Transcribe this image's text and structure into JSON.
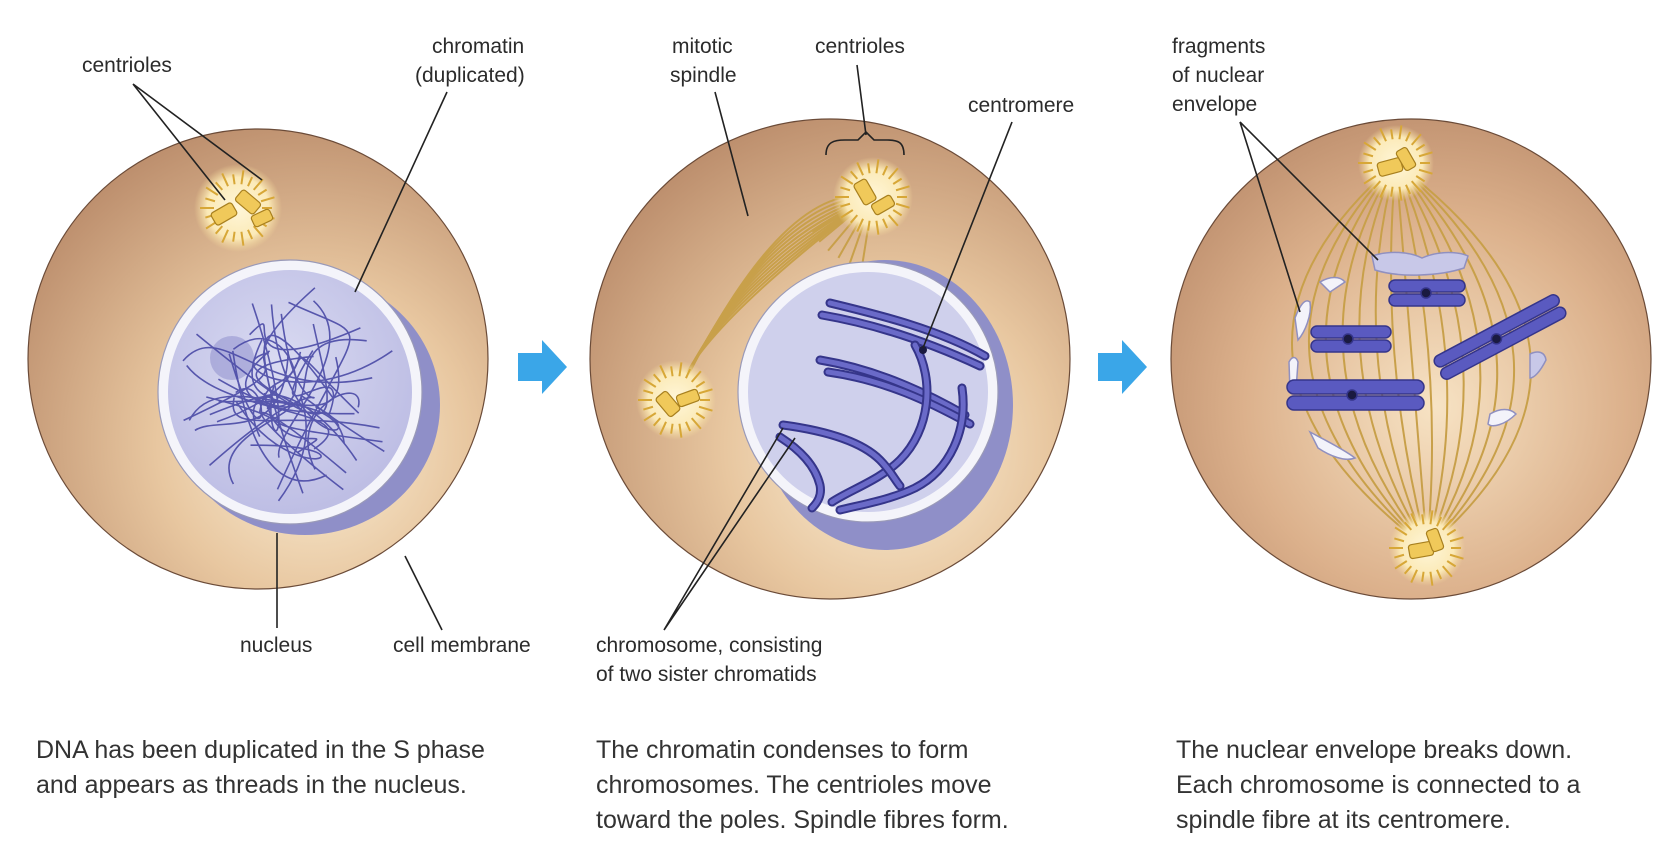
{
  "colors": {
    "cytoplasm": "#c79a79",
    "cytoplasm_light": "#f6e6c8",
    "nucleus": "#cfd0ec",
    "nuclear_envelope": "#f2f3f8",
    "chromatin": "#4a4aa6",
    "chromatid_fill": "#5a5ac0",
    "centriole": "#f0c95a",
    "centrosome_glow": "#fbeec4",
    "spindle_fibre": "#c8a04a",
    "arrow": "#3aa6e8",
    "label_line": "#222222"
  },
  "panels": [
    {
      "labels": {
        "centrioles": "centrioles",
        "chromatin_line1": "chromatin",
        "chromatin_line2": "(duplicated)",
        "nucleus": "nucleus",
        "cell_membrane": "cell membrane"
      },
      "caption": [
        "DNA has been duplicated in the S phase",
        "and appears as threads in the nucleus."
      ]
    },
    {
      "labels": {
        "mitotic_line1": "mitotic",
        "mitotic_line2": "spindle",
        "centrioles": "centrioles",
        "centromere": "centromere",
        "chromosome_line1": "chromosome, consisting",
        "chromosome_line2": "of two sister chromatids"
      },
      "caption": [
        "The chromatin condenses to form",
        "chromosomes. The centrioles move",
        "toward the poles. Spindle fibres form."
      ]
    },
    {
      "labels": {
        "fragments_line1": "fragments",
        "fragments_line2": "of nuclear",
        "fragments_line3": "envelope"
      },
      "caption": [
        "The nuclear envelope breaks down.",
        "Each chromosome is connected to a",
        "spindle fibre at its centromere."
      ]
    }
  ],
  "arrows": [
    "arrow-right-icon",
    "arrow-right-icon"
  ]
}
